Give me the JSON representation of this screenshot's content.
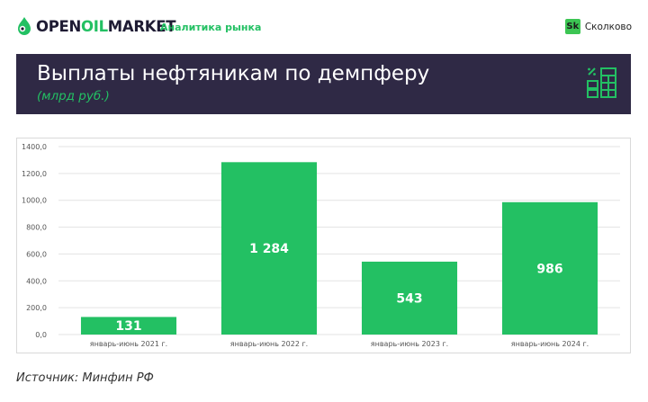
{
  "header": {
    "logo_part1": "OPEN",
    "logo_part2": "OIL",
    "logo_part3": "MARKET",
    "tagline": "Аналитика рынка",
    "partner_badge": "Sk",
    "partner_name": "Сколково"
  },
  "banner": {
    "title": "Выплаты нефтяникам по демпферу",
    "subtitle": "(млрд руб.)",
    "icon": "calculator-icon"
  },
  "colors": {
    "accent": "#23c063",
    "bar": "#23c063",
    "banner_bg": "#2f2945"
  },
  "chart_data": {
    "type": "bar",
    "categories": [
      "январь-июнь 2021 г.",
      "январь-июнь 2022 г.",
      "январь-июнь 2023 г.",
      "январь-июнь 2024 г."
    ],
    "values": [
      131,
      1284,
      543,
      986
    ],
    "value_labels": [
      "131",
      "1 284",
      "543",
      "986"
    ],
    "ylim": [
      0,
      1400
    ],
    "yticks": [
      0,
      200,
      400,
      600,
      800,
      1000,
      1200,
      1400
    ],
    "ytick_labels": [
      "0,0",
      "200,0",
      "400,0",
      "600,0",
      "800,0",
      "1000,0",
      "1200,0",
      "1400,0"
    ],
    "grid": true,
    "title": "",
    "xlabel": "",
    "ylabel": ""
  },
  "footer": {
    "source": "Источник: Минфин РФ"
  }
}
